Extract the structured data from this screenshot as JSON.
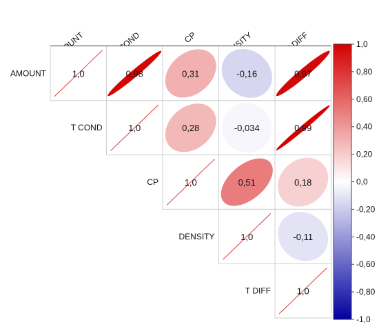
{
  "chart_data": {
    "type": "correlation-ellipse-matrix",
    "layout": "upper-triangle",
    "variables": [
      "AMOUNT",
      "T COND",
      "CP",
      "DENSITY",
      "T DIFF"
    ],
    "value_labels": [
      [
        "1,0",
        "0,98",
        "0,31",
        "-0,16",
        "0,97"
      ],
      [
        "",
        "1,0",
        "0,28",
        "-0,034",
        "0,99"
      ],
      [
        "",
        "",
        "1,0",
        "0,51",
        "0,18"
      ],
      [
        "",
        "",
        "",
        "1,0",
        "-0,11"
      ],
      [
        "",
        "",
        "",
        "",
        "1,0"
      ]
    ],
    "matrix": [
      [
        1.0,
        0.98,
        0.31,
        -0.16,
        0.97
      ],
      [
        0.98,
        1.0,
        0.28,
        -0.034,
        0.99
      ],
      [
        0.31,
        0.28,
        1.0,
        0.51,
        0.18
      ],
      [
        -0.16,
        -0.034,
        0.51,
        1.0,
        -0.11
      ],
      [
        0.97,
        0.99,
        0.18,
        -0.11,
        1.0
      ]
    ],
    "colorbar": {
      "range": [
        -1.0,
        1.0
      ],
      "ticks": [
        1.0,
        0.8,
        0.6,
        0.4,
        0.2,
        0.0,
        -0.2,
        -0.4,
        -0.6,
        -0.8,
        -1.0
      ],
      "tick_labels": [
        "1,0",
        "0,80",
        "0,60",
        "0,40",
        "0,20",
        "0,0",
        "-0,20",
        "-0,40",
        "-0,60",
        "-0,80",
        "-1,0"
      ],
      "colors": {
        "positive": "#d40000",
        "neutral": "#ffffff",
        "negative": "#0000a0"
      }
    },
    "diagonal_line_color": "#e05050",
    "grid": true
  }
}
